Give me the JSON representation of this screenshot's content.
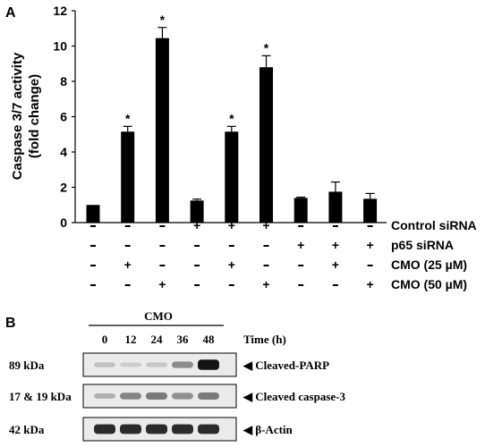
{
  "panel_a": {
    "letter": "A"
  },
  "panel_b": {
    "letter": "B",
    "group_label": "CMO",
    "time_points": [
      "0",
      "12",
      "24",
      "36",
      "48"
    ],
    "time_label": "Time (h)",
    "blots": [
      {
        "kda": "89 kDa",
        "target": "◀ Cleaved-PARP",
        "intensities": [
          0.18,
          0.12,
          0.15,
          0.42,
          0.95
        ]
      },
      {
        "kda": "17 & 19 kDa",
        "target": "◀ Cleaved caspase-3",
        "intensities": [
          0.25,
          0.45,
          0.5,
          0.4,
          0.5
        ]
      },
      {
        "kda": "42 kDa",
        "target": "◀ β-Actin",
        "intensities": [
          0.85,
          0.85,
          0.85,
          0.85,
          0.85
        ]
      }
    ]
  },
  "chart_data": {
    "type": "bar",
    "ylabel_line1": "Caspase 3/7 activity",
    "ylabel_line2": "(fold change)",
    "ylim": [
      0,
      12
    ],
    "yticks": [
      "0",
      "2",
      "4",
      "6",
      "8",
      "10",
      "12"
    ],
    "values": [
      1.0,
      5.15,
      10.45,
      1.25,
      5.15,
      8.8,
      1.4,
      1.75,
      1.35
    ],
    "errors": [
      0,
      0.3,
      0.6,
      0.08,
      0.3,
      0.65,
      0.04,
      0.55,
      0.3
    ],
    "significant": [
      false,
      true,
      true,
      false,
      true,
      true,
      false,
      false,
      false
    ],
    "significance_marker": "*",
    "bar_color": "#000000",
    "treatment_rows": [
      {
        "label": "Control siRNA",
        "signs": [
          "-",
          "-",
          "-",
          "+",
          "+",
          "+",
          "-",
          "-",
          "-"
        ]
      },
      {
        "label": "p65 siRNA",
        "signs": [
          "-",
          "-",
          "-",
          "-",
          "-",
          "-",
          "+",
          "+",
          "+"
        ]
      },
      {
        "label": "CMO (25 µM)",
        "signs": [
          "-",
          "+",
          "-",
          "-",
          "+",
          "-",
          "-",
          "+",
          "-"
        ]
      },
      {
        "label": "CMO (50 µM)",
        "signs": [
          "-",
          "-",
          "+",
          "-",
          "-",
          "+",
          "-",
          "-",
          "+"
        ]
      }
    ]
  }
}
